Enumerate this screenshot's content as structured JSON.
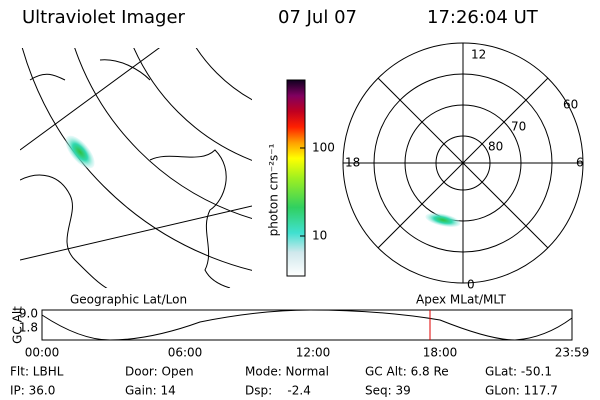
{
  "header": {
    "title": "Ultraviolet Imager",
    "date": "07 Jul 07",
    "time": "17:26:04 UT"
  },
  "colorbar": {
    "label": "photon cm⁻²s⁻¹",
    "ticks": [
      "100",
      "10"
    ]
  },
  "map": {
    "label": "Geographic Lat/Lon"
  },
  "polar": {
    "label": "Apex MLat/MLT",
    "mlt": [
      "12",
      "18",
      "6",
      "0"
    ],
    "mlat": [
      "60",
      "70",
      "80"
    ]
  },
  "timeline": {
    "ylabel": "GC Alt",
    "yticks": [
      "9.0",
      "1.8"
    ],
    "xticks": [
      "00:00",
      "06:00",
      "12:00",
      "18:00",
      "23:59"
    ]
  },
  "footer": {
    "rows": [
      [
        "Flt: LBHL",
        "Door: Open",
        "Mode: Normal",
        "GC Alt: 6.8 Re",
        "GLat: -50.1"
      ],
      [
        "IP: 36.0",
        "Gain: 14",
        "Dsp:    -2.4",
        "Seq: 39",
        "GLon: 117.7"
      ]
    ]
  }
}
